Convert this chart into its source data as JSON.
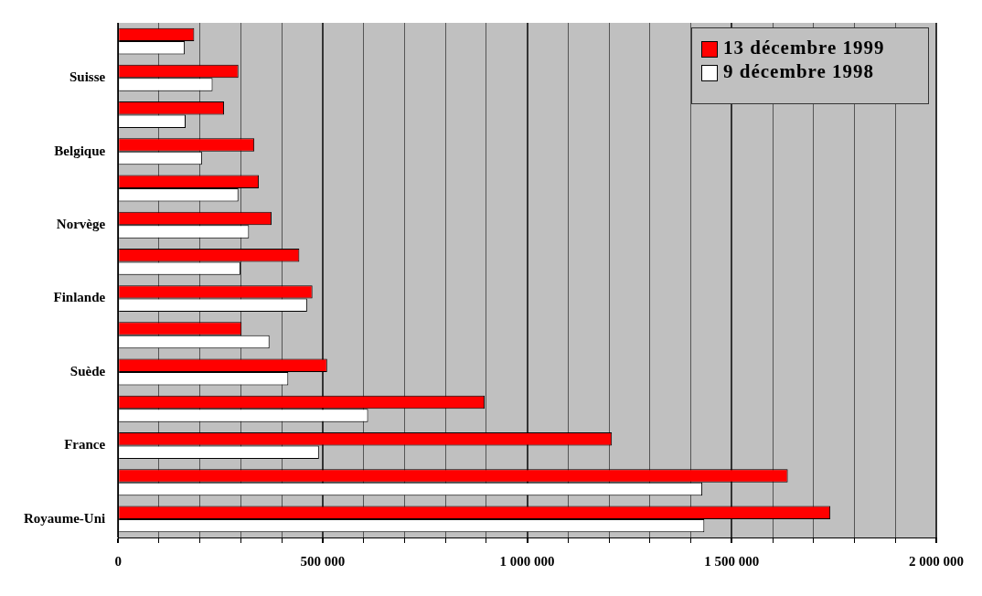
{
  "chart_data": {
    "type": "bar",
    "orientation": "horizontal",
    "categories": [
      null,
      "Suisse",
      null,
      "Belgique",
      null,
      "Norvège",
      null,
      "Finlande",
      null,
      "Suède",
      null,
      "France",
      null,
      "Royaume-Uni"
    ],
    "series": [
      {
        "name": "13 décembre 1999",
        "color": "#ff0000",
        "values": [
          186000,
          294000,
          259000,
          333000,
          344000,
          375000,
          443000,
          475000,
          302000,
          511000,
          896000,
          1207000,
          1637000,
          1741000
        ]
      },
      {
        "name": "9 décembre 1998",
        "color": "#ffffff",
        "values": [
          163000,
          231000,
          165000,
          205000,
          294000,
          320000,
          299000,
          462000,
          370000,
          416000,
          611000,
          491000,
          1428000,
          1433000
        ]
      }
    ],
    "xlim": [
      0,
      2000000
    ],
    "xticks": [
      {
        "value": 0,
        "label": "0"
      },
      {
        "value": 100000,
        "label": null
      },
      {
        "value": 200000,
        "label": null
      },
      {
        "value": 300000,
        "label": null
      },
      {
        "value": 400000,
        "label": null
      },
      {
        "value": 500000,
        "label": "500 000"
      },
      {
        "value": 600000,
        "label": null
      },
      {
        "value": 700000,
        "label": null
      },
      {
        "value": 800000,
        "label": null
      },
      {
        "value": 900000,
        "label": null
      },
      {
        "value": 1000000,
        "label": "1 000 000"
      },
      {
        "value": 1100000,
        "label": null
      },
      {
        "value": 1200000,
        "label": null
      },
      {
        "value": 1300000,
        "label": null
      },
      {
        "value": 1400000,
        "label": null
      },
      {
        "value": 1500000,
        "label": "1 500 000"
      },
      {
        "value": 1600000,
        "label": null
      },
      {
        "value": 1700000,
        "label": null
      },
      {
        "value": 1800000,
        "label": null
      },
      {
        "value": 1900000,
        "label": null
      },
      {
        "value": 2000000,
        "label": "2 000 000"
      }
    ],
    "grid": "x",
    "legend": "top right"
  }
}
